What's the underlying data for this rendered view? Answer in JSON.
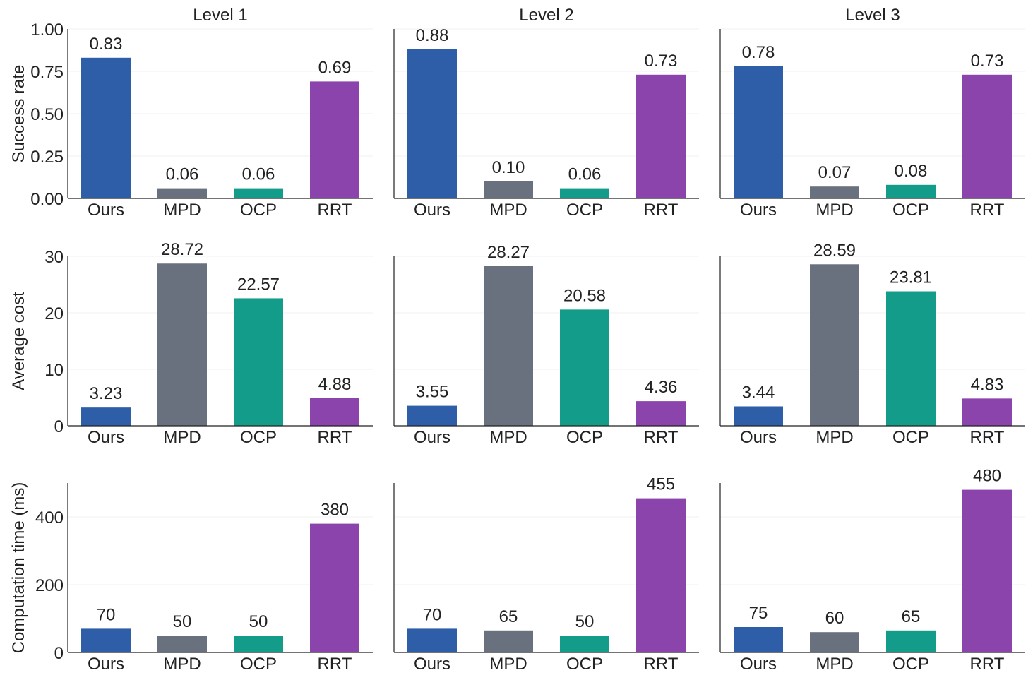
{
  "colors": {
    "Ours": "#2e5ea8",
    "MPD": "#6a717e",
    "OCP": "#139c89",
    "RRT": "#8a44ac",
    "axis": "#222222",
    "grid": "#f2f2f2"
  },
  "chart_data": [
    {
      "type": "bar",
      "title": "Level 1",
      "ylabel": "Success rate",
      "categories": [
        "Ours",
        "MPD",
        "OCP",
        "RRT"
      ],
      "values": [
        0.83,
        0.06,
        0.06,
        0.69
      ],
      "labels": [
        "0.83",
        "0.06",
        "0.06",
        "0.69"
      ],
      "ylim": [
        0,
        1
      ],
      "yticks": [
        "0.00",
        "0.25",
        "0.50",
        "0.75",
        "1.00"
      ],
      "ytick_values": [
        0,
        0.25,
        0.5,
        0.75,
        1
      ]
    },
    {
      "type": "bar",
      "title": "Level 2",
      "ylabel": "",
      "categories": [
        "Ours",
        "MPD",
        "OCP",
        "RRT"
      ],
      "values": [
        0.88,
        0.1,
        0.06,
        0.73
      ],
      "labels": [
        "0.88",
        "0.10",
        "0.06",
        "0.73"
      ],
      "ylim": [
        0,
        1
      ],
      "yticks": [],
      "ytick_values": [
        0,
        0.25,
        0.5,
        0.75,
        1
      ]
    },
    {
      "type": "bar",
      "title": "Level 3",
      "ylabel": "",
      "categories": [
        "Ours",
        "MPD",
        "OCP",
        "RRT"
      ],
      "values": [
        0.78,
        0.07,
        0.08,
        0.73
      ],
      "labels": [
        "0.78",
        "0.07",
        "0.08",
        "0.73"
      ],
      "ylim": [
        0,
        1
      ],
      "yticks": [],
      "ytick_values": [
        0,
        0.25,
        0.5,
        0.75,
        1
      ]
    },
    {
      "type": "bar",
      "title": "",
      "ylabel": "Average cost",
      "categories": [
        "Ours",
        "MPD",
        "OCP",
        "RRT"
      ],
      "values": [
        3.23,
        28.72,
        22.57,
        4.88
      ],
      "labels": [
        "3.23",
        "28.72",
        "22.57",
        "4.88"
      ],
      "ylim": [
        0,
        30
      ],
      "yticks": [
        "0",
        "10",
        "20",
        "30"
      ],
      "ytick_values": [
        0,
        10,
        20,
        30
      ]
    },
    {
      "type": "bar",
      "title": "",
      "ylabel": "",
      "categories": [
        "Ours",
        "MPD",
        "OCP",
        "RRT"
      ],
      "values": [
        3.55,
        28.27,
        20.58,
        4.36
      ],
      "labels": [
        "3.55",
        "28.27",
        "20.58",
        "4.36"
      ],
      "ylim": [
        0,
        30
      ],
      "yticks": [],
      "ytick_values": [
        0,
        10,
        20,
        30
      ]
    },
    {
      "type": "bar",
      "title": "",
      "ylabel": "",
      "categories": [
        "Ours",
        "MPD",
        "OCP",
        "RRT"
      ],
      "values": [
        3.44,
        28.59,
        23.81,
        4.83
      ],
      "labels": [
        "3.44",
        "28.59",
        "23.81",
        "4.83"
      ],
      "ylim": [
        0,
        30
      ],
      "yticks": [],
      "ytick_values": [
        0,
        10,
        20,
        30
      ]
    },
    {
      "type": "bar",
      "title": "",
      "ylabel": "Computation time (ms)",
      "categories": [
        "Ours",
        "MPD",
        "OCP",
        "RRT"
      ],
      "values": [
        70,
        50,
        50,
        380
      ],
      "labels": [
        "70",
        "50",
        "50",
        "380"
      ],
      "ylim": [
        0,
        500
      ],
      "yticks": [
        "0",
        "200",
        "400"
      ],
      "ytick_values": [
        0,
        200,
        400
      ]
    },
    {
      "type": "bar",
      "title": "",
      "ylabel": "",
      "categories": [
        "Ours",
        "MPD",
        "OCP",
        "RRT"
      ],
      "values": [
        70,
        65,
        50,
        455
      ],
      "labels": [
        "70",
        "65",
        "50",
        "455"
      ],
      "ylim": [
        0,
        500
      ],
      "yticks": [],
      "ytick_values": [
        0,
        200,
        400
      ]
    },
    {
      "type": "bar",
      "title": "",
      "ylabel": "",
      "categories": [
        "Ours",
        "MPD",
        "OCP",
        "RRT"
      ],
      "values": [
        75,
        60,
        65,
        480
      ],
      "labels": [
        "75",
        "60",
        "65",
        "480"
      ],
      "ylim": [
        0,
        500
      ],
      "yticks": [],
      "ytick_values": [
        0,
        200,
        400
      ]
    }
  ]
}
